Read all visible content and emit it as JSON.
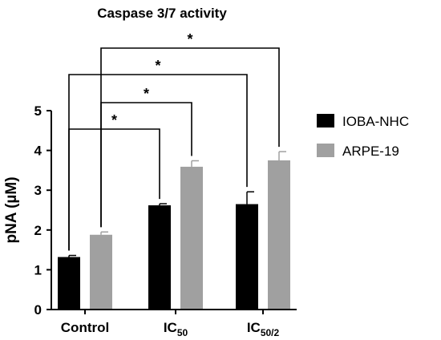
{
  "chart_data": {
    "type": "bar",
    "title": "Caspase 3/7 activity",
    "ylabel": "pNA (µM)",
    "xlabel": "",
    "ylim": [
      0,
      5
    ],
    "yticks": [
      0,
      1,
      2,
      3,
      4,
      5
    ],
    "categories": [
      {
        "main": "Control",
        "sub": ""
      },
      {
        "main": "IC",
        "sub": "50"
      },
      {
        "main": "IC",
        "sub": "50/2"
      }
    ],
    "series": [
      {
        "name": "IOBA-NHC",
        "color": "#000000",
        "values": [
          1.32,
          2.62,
          2.65
        ],
        "errors": [
          0.04,
          0.04,
          0.31
        ]
      },
      {
        "name": "ARPE-19",
        "color": "#a0a0a0",
        "values": [
          1.88,
          3.59,
          3.75
        ],
        "errors": [
          0.07,
          0.15,
          0.22
        ]
      }
    ],
    "legend": "right",
    "significance": [
      {
        "label": "*",
        "from": {
          "category": 0,
          "series": 0
        },
        "to": {
          "category": 1,
          "series": 0
        }
      },
      {
        "label": "*",
        "from": {
          "category": 0,
          "series": 1
        },
        "to": {
          "category": 1,
          "series": 1
        }
      },
      {
        "label": "*",
        "from": {
          "category": 0,
          "series": 0
        },
        "to": {
          "category": 2,
          "series": 0
        }
      },
      {
        "label": "*",
        "from": {
          "category": 0,
          "series": 1
        },
        "to": {
          "category": 2,
          "series": 1
        }
      }
    ]
  }
}
